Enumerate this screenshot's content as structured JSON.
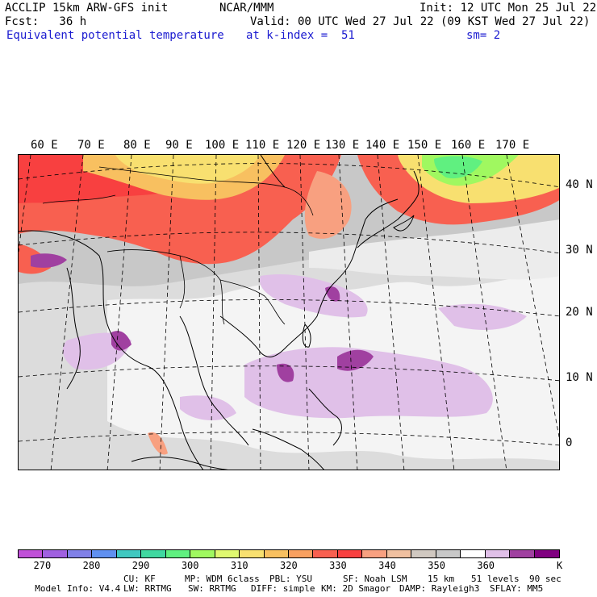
{
  "header": {
    "left1": "ACCLIP 15km ARW-GFS init",
    "center1": "NCAR/MMM",
    "right1": "Init: 12 UTC Mon 25 Jul 22",
    "left2": "Fcst:   36 h",
    "right2": "Valid: 00 UTC Wed 27 Jul 22 (09 KST Wed 27 Jul 22)",
    "field": "Equivalent potential temperature",
    "level": "at k-index =  51",
    "smooth": "sm= 2"
  },
  "map": {
    "lon_labels": [
      "60 E",
      "70 E",
      "80 E",
      "90 E",
      "100 E",
      "110 E",
      "120 E",
      "130 E",
      "140 E",
      "150 E",
      "160 E",
      "170 E"
    ],
    "lat_labels": [
      "40 N",
      "30 N",
      "20 N",
      "10 N",
      "0"
    ]
  },
  "colorbar": {
    "colors": [
      "#c050d8",
      "#a060e0",
      "#8080e8",
      "#6090f0",
      "#40c8c0",
      "#40d8a0",
      "#60f080",
      "#a0f860",
      "#e0f870",
      "#f8e070",
      "#f8c060",
      "#f8a060",
      "#f86050",
      "#f84040",
      "#f8a080",
      "#f0c0a0",
      "#d0c8c0",
      "#c8c8c8",
      "#ffffff",
      "#e0c0e8",
      "#a040a0",
      "#800080"
    ],
    "tick_labels": [
      "270",
      "280",
      "290",
      "300",
      "310",
      "320",
      "330",
      "340",
      "350",
      "360"
    ],
    "unit": "K"
  },
  "model_info": {
    "line1": [
      {
        "label": "Model Info: V4.4"
      },
      {
        "label": "CU: KF"
      },
      {
        "label": "MP: WDM 6class"
      },
      {
        "label": "PBL: YSU"
      },
      {
        "label": "SF: Noah LSM"
      },
      {
        "label": "15 km"
      },
      {
        "label": "51 levels"
      },
      {
        "label": "90 sec"
      }
    ],
    "line2": [
      {
        "label": "LW: RRTMG"
      },
      {
        "label": "SW: RRTMG"
      },
      {
        "label": "DIFF: simple"
      },
      {
        "label": "KM: 2D Smagor"
      },
      {
        "label": "DAMP: Rayleigh3"
      },
      {
        "label": "SFLAY: MM5"
      }
    ]
  }
}
